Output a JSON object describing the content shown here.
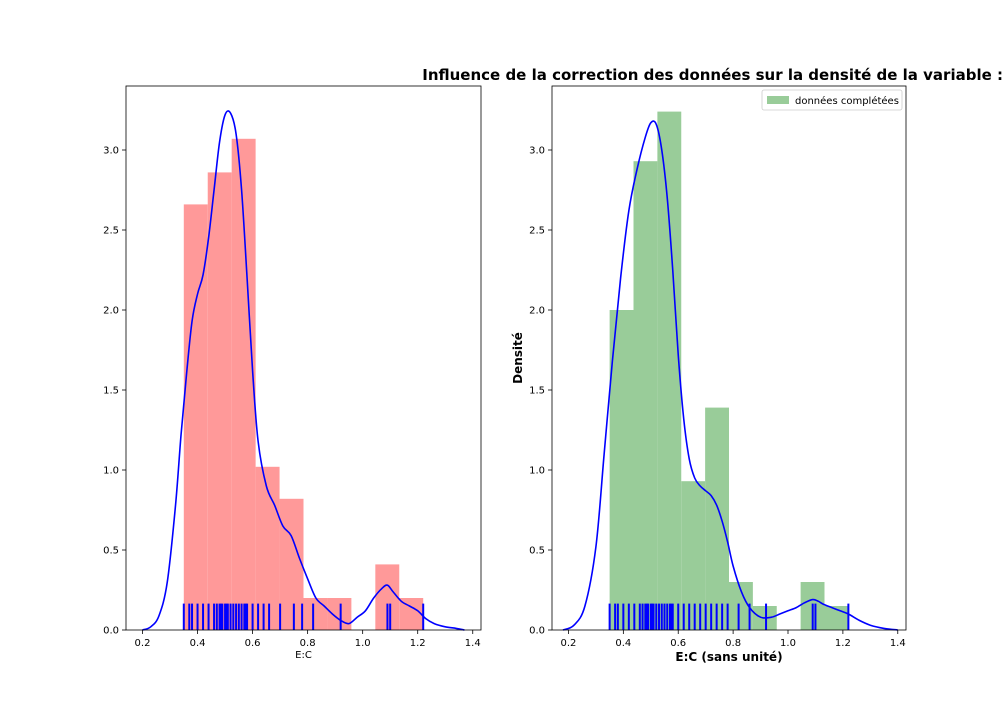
{
  "figure": {
    "title": "Influence de la correction des données sur la densité de la variable :"
  },
  "chart_data": [
    {
      "type": "bar",
      "subtype": "histogram-kde-rug",
      "xlabel": "E:C",
      "ylabel": "",
      "xlim": [
        0.14,
        1.43
      ],
      "ylim": [
        0,
        3.4
      ],
      "xticks": [
        "0.2",
        "0.4",
        "0.6",
        "0.8",
        "1.0",
        "1.2",
        "1.4"
      ],
      "yticks": [
        "0.0",
        "0.5",
        "1.0",
        "1.5",
        "2.0",
        "2.5",
        "3.0"
      ],
      "bar_color": "#ff9999",
      "bins": [
        {
          "x0": 0.35,
          "x1": 0.437,
          "value": 2.66
        },
        {
          "x0": 0.437,
          "x1": 0.524,
          "value": 2.86
        },
        {
          "x0": 0.524,
          "x1": 0.611,
          "value": 3.07
        },
        {
          "x0": 0.611,
          "x1": 0.698,
          "value": 1.02
        },
        {
          "x0": 0.698,
          "x1": 0.785,
          "value": 0.82
        },
        {
          "x0": 0.785,
          "x1": 0.872,
          "value": 0.2
        },
        {
          "x0": 0.872,
          "x1": 0.959,
          "value": 0.2
        },
        {
          "x0": 0.959,
          "x1": 1.046,
          "value": 0
        },
        {
          "x0": 1.046,
          "x1": 1.133,
          "value": 0.41
        },
        {
          "x0": 1.133,
          "x1": 1.22,
          "value": 0.2
        }
      ],
      "kde_color": "#0000ff",
      "kde": {
        "x": [
          0.2,
          0.23,
          0.26,
          0.29,
          0.32,
          0.34,
          0.36,
          0.38,
          0.4,
          0.42,
          0.44,
          0.46,
          0.48,
          0.5,
          0.52,
          0.54,
          0.56,
          0.58,
          0.6,
          0.62,
          0.65,
          0.68,
          0.71,
          0.74,
          0.77,
          0.8,
          0.83,
          0.86,
          0.89,
          0.92,
          0.95,
          0.98,
          1.01,
          1.04,
          1.07,
          1.09,
          1.11,
          1.14,
          1.17,
          1.2,
          1.23,
          1.26,
          1.3,
          1.34,
          1.37
        ],
        "y": [
          0.0,
          0.02,
          0.09,
          0.3,
          0.78,
          1.22,
          1.6,
          1.93,
          2.1,
          2.22,
          2.45,
          2.75,
          3.05,
          3.22,
          3.23,
          3.1,
          2.75,
          2.2,
          1.62,
          1.18,
          0.9,
          0.78,
          0.65,
          0.59,
          0.45,
          0.32,
          0.2,
          0.15,
          0.1,
          0.06,
          0.04,
          0.08,
          0.12,
          0.2,
          0.26,
          0.28,
          0.24,
          0.18,
          0.15,
          0.12,
          0.07,
          0.04,
          0.02,
          0.01,
          0.0
        ]
      },
      "rug_color": "#0000ff",
      "rug": [
        0.35,
        0.37,
        0.38,
        0.4,
        0.42,
        0.44,
        0.46,
        0.47,
        0.48,
        0.485,
        0.49,
        0.5,
        0.505,
        0.51,
        0.52,
        0.53,
        0.54,
        0.55,
        0.56,
        0.57,
        0.575,
        0.58,
        0.6,
        0.62,
        0.64,
        0.66,
        0.7,
        0.75,
        0.78,
        0.82,
        0.92,
        1.09,
        1.1,
        1.22
      ]
    },
    {
      "type": "bar",
      "subtype": "histogram-kde-rug",
      "xlabel": "E:C (sans unité)",
      "ylabel": "Densité",
      "xlim": [
        0.14,
        1.43
      ],
      "ylim": [
        0,
        3.4
      ],
      "xticks": [
        "0.2",
        "0.4",
        "0.6",
        "0.8",
        "1.0",
        "1.2",
        "1.4"
      ],
      "yticks": [
        "0.0",
        "0.5",
        "1.0",
        "1.5",
        "2.0",
        "2.5",
        "3.0"
      ],
      "bar_color": "#99cc99",
      "legend": {
        "label": "données complétées",
        "position": "top-right"
      },
      "bins": [
        {
          "x0": 0.35,
          "x1": 0.437,
          "value": 2.0
        },
        {
          "x0": 0.437,
          "x1": 0.524,
          "value": 2.93
        },
        {
          "x0": 0.524,
          "x1": 0.611,
          "value": 3.24
        },
        {
          "x0": 0.611,
          "x1": 0.698,
          "value": 0.93
        },
        {
          "x0": 0.698,
          "x1": 0.785,
          "value": 1.39
        },
        {
          "x0": 0.785,
          "x1": 0.872,
          "value": 0.3
        },
        {
          "x0": 0.872,
          "x1": 0.959,
          "value": 0.15
        },
        {
          "x0": 0.959,
          "x1": 1.046,
          "value": 0
        },
        {
          "x0": 1.046,
          "x1": 1.133,
          "value": 0.3
        },
        {
          "x0": 1.133,
          "x1": 1.22,
          "value": 0.15
        }
      ],
      "kde_color": "#0000ff",
      "kde": {
        "x": [
          0.18,
          0.22,
          0.26,
          0.3,
          0.33,
          0.36,
          0.39,
          0.42,
          0.45,
          0.48,
          0.5,
          0.52,
          0.54,
          0.56,
          0.58,
          0.6,
          0.62,
          0.64,
          0.66,
          0.68,
          0.7,
          0.72,
          0.74,
          0.76,
          0.78,
          0.8,
          0.83,
          0.86,
          0.9,
          0.94,
          0.97,
          1.0,
          1.03,
          1.06,
          1.09,
          1.11,
          1.13,
          1.16,
          1.19,
          1.22,
          1.26,
          1.3,
          1.35,
          1.4
        ],
        "y": [
          0.0,
          0.03,
          0.15,
          0.52,
          1.1,
          1.68,
          2.2,
          2.62,
          2.88,
          3.08,
          3.17,
          3.16,
          3.0,
          2.7,
          2.25,
          1.72,
          1.32,
          1.07,
          0.95,
          0.9,
          0.87,
          0.84,
          0.78,
          0.68,
          0.55,
          0.4,
          0.24,
          0.14,
          0.08,
          0.08,
          0.1,
          0.12,
          0.14,
          0.17,
          0.19,
          0.18,
          0.16,
          0.14,
          0.12,
          0.1,
          0.06,
          0.03,
          0.01,
          0.0
        ]
      },
      "rug_color": "#0000ff",
      "rug": [
        0.35,
        0.37,
        0.38,
        0.4,
        0.42,
        0.44,
        0.46,
        0.47,
        0.48,
        0.485,
        0.49,
        0.5,
        0.505,
        0.51,
        0.52,
        0.53,
        0.54,
        0.55,
        0.56,
        0.57,
        0.575,
        0.58,
        0.6,
        0.62,
        0.64,
        0.66,
        0.68,
        0.7,
        0.72,
        0.74,
        0.76,
        0.78,
        0.82,
        0.86,
        0.92,
        1.09,
        1.1,
        1.22
      ]
    }
  ]
}
